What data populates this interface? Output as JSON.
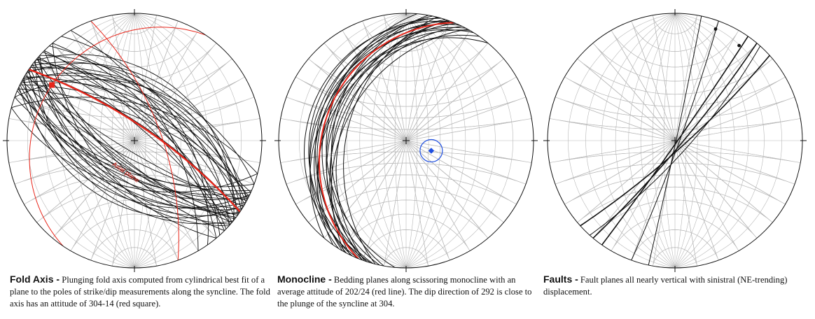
{
  "panels": [
    {
      "id": "fold-axis",
      "caption_title": "Fold Axis -",
      "caption_text": " Plunging fold axis computed from cylindrical best fit of a plane to the poles of strike/dip measurements along the syncline. The fold axis has an attitude of 304-14 (red square).",
      "annotation": "Axial plane",
      "fold_axis": {
        "trend": 304,
        "plunge": 14
      },
      "bedding_planes": [
        {
          "strike": 300,
          "dip": 60
        },
        {
          "strike": 305,
          "dip": 52
        },
        {
          "strike": 310,
          "dip": 68
        },
        {
          "strike": 298,
          "dip": 45
        },
        {
          "strike": 315,
          "dip": 72
        },
        {
          "strike": 302,
          "dip": 38
        },
        {
          "strike": 308,
          "dip": 58
        },
        {
          "strike": 296,
          "dip": 64
        },
        {
          "strike": 312,
          "dip": 48
        },
        {
          "strike": 318,
          "dip": 55
        },
        {
          "strike": 294,
          "dip": 70
        },
        {
          "strike": 306,
          "dip": 42
        },
        {
          "strike": 320,
          "dip": 62
        },
        {
          "strike": 299,
          "dip": 50
        },
        {
          "strike": 304,
          "dip": 75
        },
        {
          "strike": 309,
          "dip": 35
        },
        {
          "strike": 314,
          "dip": 66
        },
        {
          "strike": 297,
          "dip": 56
        },
        {
          "strike": 303,
          "dip": 46
        },
        {
          "strike": 311,
          "dip": 78
        },
        {
          "strike": 117,
          "dip": 60
        },
        {
          "strike": 122,
          "dip": 50
        },
        {
          "strike": 128,
          "dip": 68
        },
        {
          "strike": 115,
          "dip": 42
        },
        {
          "strike": 130,
          "dip": 72
        },
        {
          "strike": 120,
          "dip": 36
        },
        {
          "strike": 125,
          "dip": 56
        },
        {
          "strike": 113,
          "dip": 64
        },
        {
          "strike": 132,
          "dip": 48
        },
        {
          "strike": 118,
          "dip": 74
        },
        {
          "strike": 124,
          "dip": 44
        },
        {
          "strike": 127,
          "dip": 62
        },
        {
          "strike": 116,
          "dip": 54
        },
        {
          "strike": 121,
          "dip": 80
        },
        {
          "strike": 129,
          "dip": 40
        },
        {
          "strike": 114,
          "dip": 58
        },
        {
          "strike": 126,
          "dip": 70
        },
        {
          "strike": 119,
          "dip": 47
        },
        {
          "strike": 123,
          "dip": 66
        },
        {
          "strike": 131,
          "dip": 52
        },
        {
          "strike": 285,
          "dip": 58
        },
        {
          "strike": 290,
          "dip": 44
        },
        {
          "strike": 325,
          "dip": 50
        },
        {
          "strike": 330,
          "dip": 60
        },
        {
          "strike": 140,
          "dip": 55
        },
        {
          "strike": 105,
          "dip": 50
        },
        {
          "strike": 110,
          "dip": 62
        },
        {
          "strike": 135,
          "dip": 66
        }
      ],
      "axial_plane": {
        "strike": 304,
        "dip": 76
      },
      "red_circle_1": {
        "strike": 214,
        "dip": 14
      },
      "red_circle_2": {
        "strike": 340,
        "dip": 66
      }
    },
    {
      "id": "monocline",
      "caption_title": "Monocline -",
      "caption_text": " Bedding planes along scissoring monocline with an average attitude of 202/24 (red line). The dip direction of 292 is close to the plunge of the syncline at 304.",
      "average_plane": {
        "strike": 202,
        "dip": 24
      },
      "mean_pole": {
        "trend": 112,
        "plunge": 66
      },
      "bedding_planes": [
        {
          "strike": 195,
          "dip": 20
        },
        {
          "strike": 198,
          "dip": 28
        },
        {
          "strike": 205,
          "dip": 18
        },
        {
          "strike": 210,
          "dip": 26
        },
        {
          "strike": 200,
          "dip": 32
        },
        {
          "strike": 192,
          "dip": 24
        },
        {
          "strike": 208,
          "dip": 22
        },
        {
          "strike": 203,
          "dip": 30
        },
        {
          "strike": 196,
          "dip": 16
        },
        {
          "strike": 212,
          "dip": 20
        },
        {
          "strike": 199,
          "dip": 36
        },
        {
          "strike": 206,
          "dip": 34
        },
        {
          "strike": 190,
          "dip": 30
        },
        {
          "strike": 215,
          "dip": 28
        },
        {
          "strike": 202,
          "dip": 14
        },
        {
          "strike": 194,
          "dip": 40
        },
        {
          "strike": 209,
          "dip": 38
        },
        {
          "strike": 200,
          "dip": 22
        },
        {
          "strike": 185,
          "dip": 26
        },
        {
          "strike": 220,
          "dip": 24
        }
      ]
    },
    {
      "id": "faults",
      "caption_title": "Faults -",
      "caption_text": " Fault planes all nearly vertical with sinistral (NE-trending) displacement.",
      "fault_planes": [
        {
          "strike": 40,
          "dip": 84
        },
        {
          "strike": 35,
          "dip": 88
        },
        {
          "strike": 48,
          "dip": 82
        },
        {
          "strike": 20,
          "dip": 86
        },
        {
          "strike": 12,
          "dip": 89
        },
        {
          "strike": 42,
          "dip": 78
        }
      ],
      "slip_points": [
        {
          "trend": 20,
          "plunge": 4
        },
        {
          "trend": 34,
          "plunge": 6
        }
      ]
    }
  ]
}
